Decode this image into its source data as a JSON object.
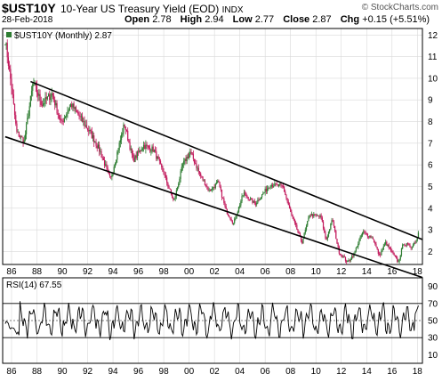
{
  "header": {
    "symbol": "$UST10Y",
    "name": "10-Year US Treasury Yield (EOD)",
    "exchange": "INDX",
    "copyright": "© StockCharts.com",
    "date": "28-Feb-2018",
    "ohlc": {
      "open_label": "Open",
      "open": "2.78",
      "high_label": "High",
      "high": "2.94",
      "low_label": "Low",
      "low": "2.77",
      "close_label": "Close",
      "close": "2.87",
      "chg_label": "Chg",
      "chg": "+0.15 (+5.51%)"
    }
  },
  "colors": {
    "up": "#2e7d32",
    "down": "#c2185b",
    "line": "#000000",
    "grid": "#d9d9d9",
    "rsi": "#000000"
  },
  "chart_data": [
    {
      "type": "candlestick",
      "legend": "$UST10Y (Monthly) 2.87",
      "x_ticks": [
        "86",
        "88",
        "90",
        "92",
        "94",
        "96",
        "98",
        "00",
        "02",
        "04",
        "06",
        "08",
        "10",
        "12",
        "14",
        "16",
        "18"
      ],
      "y_ticks": [
        2,
        3,
        4,
        5,
        6,
        7,
        8,
        9,
        10,
        11,
        12
      ],
      "ylim": [
        1.4,
        12.3
      ],
      "xlim": [
        1985.3,
        2018.4
      ],
      "anchors": [
        [
          1985.5,
          11.8
        ],
        [
          1986.0,
          9.6
        ],
        [
          1986.4,
          7.5
        ],
        [
          1987.0,
          7.1
        ],
        [
          1987.7,
          9.8
        ],
        [
          1988.4,
          8.8
        ],
        [
          1989.2,
          9.3
        ],
        [
          1989.9,
          7.9
        ],
        [
          1990.7,
          8.8
        ],
        [
          1991.5,
          8.1
        ],
        [
          1992.3,
          7.4
        ],
        [
          1993.0,
          6.6
        ],
        [
          1993.8,
          5.3
        ],
        [
          1994.9,
          7.9
        ],
        [
          1995.6,
          6.2
        ],
        [
          1996.4,
          6.9
        ],
        [
          1997.2,
          6.7
        ],
        [
          1998.0,
          5.6
        ],
        [
          1998.8,
          4.3
        ],
        [
          1999.5,
          6.0
        ],
        [
          2000.1,
          6.6
        ],
        [
          2000.9,
          5.5
        ],
        [
          2001.6,
          4.8
        ],
        [
          2002.3,
          5.2
        ],
        [
          2002.9,
          3.9
        ],
        [
          2003.5,
          3.3
        ],
        [
          2004.3,
          4.7
        ],
        [
          2005.2,
          4.2
        ],
        [
          2006.4,
          5.1
        ],
        [
          2007.4,
          5.0
        ],
        [
          2008.0,
          3.8
        ],
        [
          2008.9,
          2.4
        ],
        [
          2009.5,
          3.7
        ],
        [
          2010.4,
          3.6
        ],
        [
          2010.8,
          2.5
        ],
        [
          2011.3,
          3.5
        ],
        [
          2011.8,
          2.0
        ],
        [
          2012.5,
          1.5
        ],
        [
          2013.0,
          1.9
        ],
        [
          2013.7,
          2.9
        ],
        [
          2014.5,
          2.6
        ],
        [
          2015.0,
          1.8
        ],
        [
          2015.5,
          2.4
        ],
        [
          2016.5,
          1.5
        ],
        [
          2016.9,
          2.4
        ],
        [
          2017.5,
          2.2
        ],
        [
          2017.9,
          2.5
        ],
        [
          2018.15,
          2.87
        ]
      ],
      "channel_upper": [
        [
          1987.5,
          9.85
        ],
        [
          2018.4,
          2.55
        ]
      ],
      "channel_lower": [
        [
          1985.5,
          7.3
        ],
        [
          2018.4,
          0.8
        ]
      ]
    },
    {
      "type": "line",
      "legend": "RSI(14) 67.55",
      "y_ticks": [
        10,
        30,
        50,
        70,
        90
      ],
      "ylim": [
        0,
        100
      ],
      "reference_lines": [
        30,
        50,
        70
      ],
      "final_value": 67.55
    }
  ]
}
